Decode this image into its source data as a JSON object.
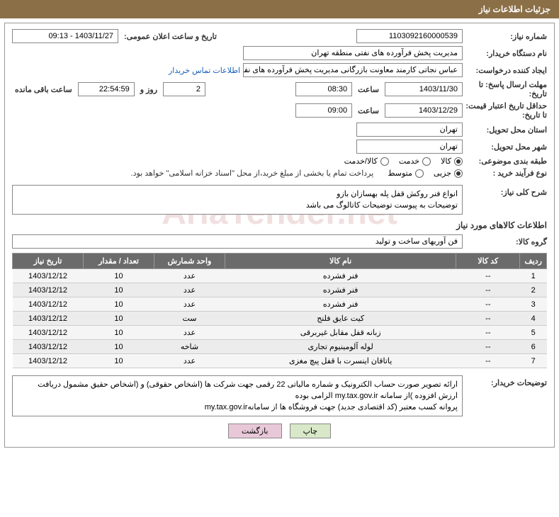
{
  "header": {
    "title": "جزئیات اطلاعات نیاز"
  },
  "form": {
    "need_number_label": "شماره نیاز:",
    "need_number": "1103092160000539",
    "announce_label": "تاریخ و ساعت اعلان عمومی:",
    "announce_value": "1403/11/27 - 09:13",
    "buyer_org_label": "نام دستگاه خریدار:",
    "buyer_org": "مدیریت پخش فرآورده های نفتی منطقه تهران",
    "requester_label": "ایجاد کننده درخواست:",
    "requester": "عباس نجاتی کارمند معاونت بازرگانی مدیریت پخش فرآورده های نفتی منطقه تهر",
    "contact_link": "اطلاعات تماس خریدار",
    "deadline_label": "مهلت ارسال پاسخ: تا تاریخ:",
    "deadline_date": "1403/11/30",
    "time_label": "ساعت",
    "deadline_time": "08:30",
    "days_count": "2",
    "days_and": "روز و",
    "countdown": "22:54:59",
    "remaining_label": "ساعت باقی مانده",
    "validity_label": "حداقل تاریخ اعتبار قیمت: تا تاریخ:",
    "validity_date": "1403/12/29",
    "validity_time": "09:00",
    "delivery_province_label": "استان محل تحویل:",
    "delivery_province": "تهران",
    "delivery_city_label": "شهر محل تحویل:",
    "delivery_city": "تهران",
    "category_label": "طبقه بندی موضوعی:",
    "category_options": {
      "goods": {
        "label": "کالا",
        "checked": true
      },
      "service": {
        "label": "خدمت",
        "checked": false
      },
      "both": {
        "label": "کالا/خدمت",
        "checked": false
      }
    },
    "process_label": "نوع فرآیند خرید :",
    "process_options": {
      "partial": {
        "label": "جزیی",
        "checked": true
      },
      "medium": {
        "label": "متوسط",
        "checked": false
      }
    },
    "process_note": "پرداخت تمام یا بخشی از مبلغ خرید،از محل \"اسناد خزانه اسلامی\" خواهد بود.",
    "summary_label": "شرح کلی نیاز:",
    "summary_text": "انواع فنر روکش قفل  پله بهسازان بازو\nتوضیحات به پیوست توضیحات کاتالوگ می باشد",
    "goods_section_title": "اطلاعات کالاهای مورد نیاز",
    "goods_group_label": "گروه کالا:",
    "goods_group": "فن آوریهای ساخت و تولید",
    "buyer_notes_label": "توضیحات خریدار:",
    "buyer_notes": "ارائه  تصویر صورت حساب الکترونیک و شماره مالیاتی 22 رقمی  جهت شرکت ها (اشخاص حقوقی) و (اشخاص حقیق  مشمول دریافت ارزش افزوده )از سامانه my.tax.gov.ir   الزامی بوده\nپروانه کسب معتبر (کد اقتصادی جدید) جهت فروشگاه ها از سامانهmy.tax.gov.ir"
  },
  "table": {
    "headers": {
      "idx": "ردیف",
      "code": "کد کالا",
      "name": "نام کالا",
      "unit": "واحد شمارش",
      "qty": "تعداد / مقدار",
      "date": "تاریخ نیاز"
    },
    "rows": [
      {
        "idx": "1",
        "code": "--",
        "name": "فنر فشرده",
        "unit": "عدد",
        "qty": "10",
        "date": "1403/12/12"
      },
      {
        "idx": "2",
        "code": "--",
        "name": "فنر فشرده",
        "unit": "عدد",
        "qty": "10",
        "date": "1403/12/12"
      },
      {
        "idx": "3",
        "code": "--",
        "name": "فنر فشرده",
        "unit": "عدد",
        "qty": "10",
        "date": "1403/12/12"
      },
      {
        "idx": "4",
        "code": "--",
        "name": "کیت عایق فلنج",
        "unit": "ست",
        "qty": "10",
        "date": "1403/12/12"
      },
      {
        "idx": "5",
        "code": "--",
        "name": "زبانه قفل مقابل غیربرقی",
        "unit": "عدد",
        "qty": "10",
        "date": "1403/12/12"
      },
      {
        "idx": "6",
        "code": "--",
        "name": "لوله آلومینیوم تجاری",
        "unit": "شاخه",
        "qty": "10",
        "date": "1403/12/12"
      },
      {
        "idx": "7",
        "code": "--",
        "name": "یاتاقان اینسرت با قفل پیچ مغزی",
        "unit": "عدد",
        "qty": "10",
        "date": "1403/12/12"
      }
    ]
  },
  "buttons": {
    "print": "چاپ",
    "back": "بازگشت"
  },
  "watermark": "AriaTender.net"
}
